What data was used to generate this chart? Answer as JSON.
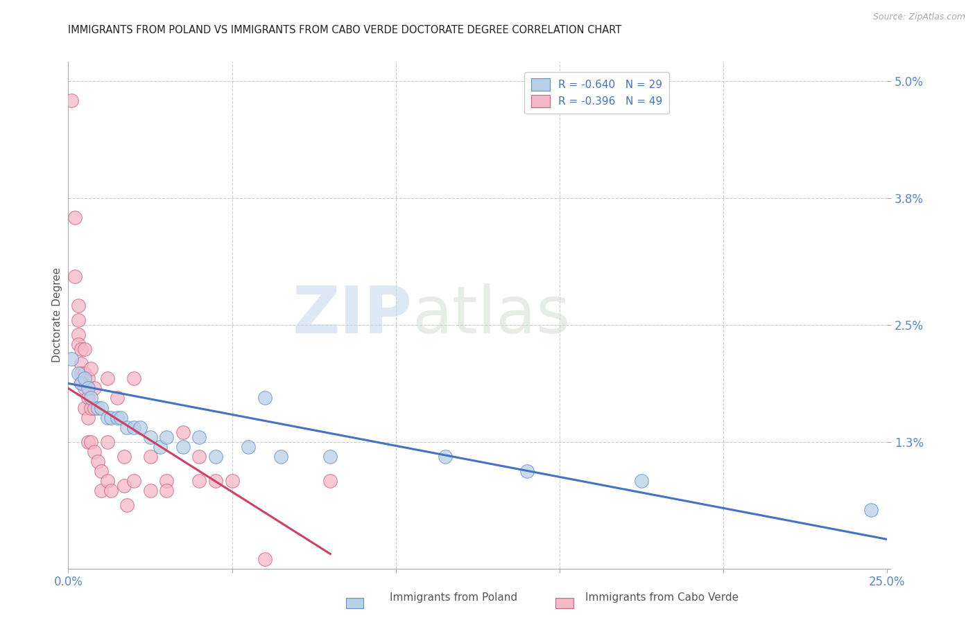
{
  "title": "IMMIGRANTS FROM POLAND VS IMMIGRANTS FROM CABO VERDE DOCTORATE DEGREE CORRELATION CHART",
  "source": "Source: ZipAtlas.com",
  "ylabel": "Doctorate Degree",
  "xlim": [
    0.0,
    0.25
  ],
  "ylim": [
    0.0,
    0.052
  ],
  "legend_entries": [
    {
      "label": "R = -0.640   N = 29",
      "color": "#b8d0e8"
    },
    {
      "label": "R = -0.396   N = 49",
      "color": "#f5b8c8"
    }
  ],
  "watermark_zip": "ZIP",
  "watermark_atlas": "atlas",
  "poland_color": "#b8d0e8",
  "cabo_verde_color": "#f5b8c8",
  "poland_edge_color": "#6090c8",
  "cabo_verde_edge_color": "#d06080",
  "poland_line_color": "#4472c4",
  "cabo_verde_line_color": "#d04060",
  "poland_scatter": [
    [
      0.001,
      0.0215
    ],
    [
      0.003,
      0.02
    ],
    [
      0.004,
      0.019
    ],
    [
      0.005,
      0.0195
    ],
    [
      0.006,
      0.0185
    ],
    [
      0.007,
      0.0175
    ],
    [
      0.009,
      0.0165
    ],
    [
      0.01,
      0.0165
    ],
    [
      0.012,
      0.0155
    ],
    [
      0.013,
      0.0155
    ],
    [
      0.015,
      0.0155
    ],
    [
      0.016,
      0.0155
    ],
    [
      0.018,
      0.0145
    ],
    [
      0.02,
      0.0145
    ],
    [
      0.022,
      0.0145
    ],
    [
      0.025,
      0.0135
    ],
    [
      0.028,
      0.0125
    ],
    [
      0.03,
      0.0135
    ],
    [
      0.035,
      0.0125
    ],
    [
      0.04,
      0.0135
    ],
    [
      0.045,
      0.0115
    ],
    [
      0.055,
      0.0125
    ],
    [
      0.06,
      0.0175
    ],
    [
      0.065,
      0.0115
    ],
    [
      0.08,
      0.0115
    ],
    [
      0.115,
      0.0115
    ],
    [
      0.14,
      0.01
    ],
    [
      0.175,
      0.009
    ],
    [
      0.245,
      0.006
    ]
  ],
  "cabo_verde_scatter": [
    [
      0.001,
      0.048
    ],
    [
      0.002,
      0.036
    ],
    [
      0.002,
      0.03
    ],
    [
      0.003,
      0.027
    ],
    [
      0.003,
      0.0255
    ],
    [
      0.003,
      0.024
    ],
    [
      0.003,
      0.023
    ],
    [
      0.004,
      0.0225
    ],
    [
      0.004,
      0.021
    ],
    [
      0.004,
      0.02
    ],
    [
      0.004,
      0.019
    ],
    [
      0.005,
      0.0225
    ],
    [
      0.005,
      0.02
    ],
    [
      0.005,
      0.0185
    ],
    [
      0.005,
      0.0165
    ],
    [
      0.006,
      0.0195
    ],
    [
      0.006,
      0.0175
    ],
    [
      0.006,
      0.0155
    ],
    [
      0.006,
      0.013
    ],
    [
      0.007,
      0.0205
    ],
    [
      0.007,
      0.0165
    ],
    [
      0.007,
      0.013
    ],
    [
      0.008,
      0.0185
    ],
    [
      0.008,
      0.0165
    ],
    [
      0.008,
      0.012
    ],
    [
      0.009,
      0.011
    ],
    [
      0.01,
      0.01
    ],
    [
      0.01,
      0.008
    ],
    [
      0.012,
      0.0195
    ],
    [
      0.012,
      0.013
    ],
    [
      0.012,
      0.009
    ],
    [
      0.013,
      0.008
    ],
    [
      0.015,
      0.0175
    ],
    [
      0.017,
      0.0115
    ],
    [
      0.017,
      0.0085
    ],
    [
      0.018,
      0.0065
    ],
    [
      0.02,
      0.0195
    ],
    [
      0.02,
      0.009
    ],
    [
      0.025,
      0.0115
    ],
    [
      0.025,
      0.008
    ],
    [
      0.03,
      0.009
    ],
    [
      0.03,
      0.008
    ],
    [
      0.035,
      0.014
    ],
    [
      0.04,
      0.0115
    ],
    [
      0.04,
      0.009
    ],
    [
      0.045,
      0.009
    ],
    [
      0.05,
      0.009
    ],
    [
      0.06,
      0.001
    ],
    [
      0.08,
      0.009
    ]
  ],
  "poland_line_x": [
    0.0,
    0.25
  ],
  "poland_line_y": [
    0.019,
    0.003
  ],
  "cabo_verde_line_x": [
    0.0,
    0.08
  ],
  "cabo_verde_line_y": [
    0.0185,
    0.0015
  ]
}
